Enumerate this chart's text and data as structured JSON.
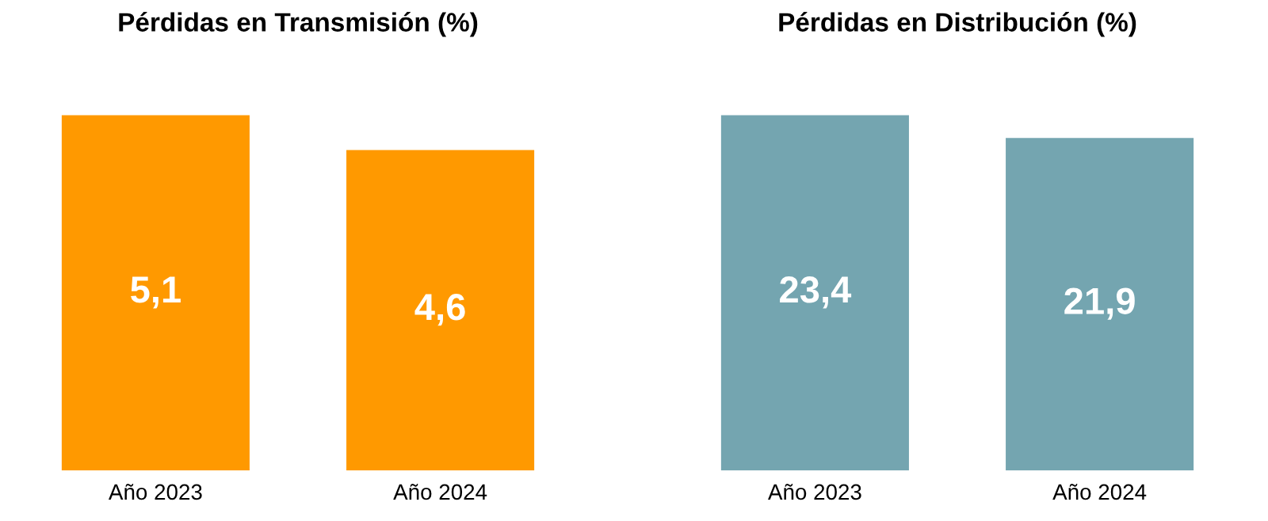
{
  "chart_data": [
    {
      "type": "bar",
      "title": "Pérdidas en Transmisión (%)",
      "categories": [
        "Año 2023",
        "Año 2024"
      ],
      "values": [
        5.1,
        4.6
      ],
      "value_labels": [
        "5,1",
        "4,6"
      ],
      "color": "#ff9900",
      "grid": false,
      "legend": false
    },
    {
      "type": "bar",
      "title": "Pérdidas en Distribución (%)",
      "categories": [
        "Año 2023",
        "Año 2024"
      ],
      "values": [
        23.4,
        21.9
      ],
      "value_labels": [
        "23,4",
        "21,9"
      ],
      "color": "#74a5b0",
      "grid": false,
      "legend": false
    }
  ]
}
